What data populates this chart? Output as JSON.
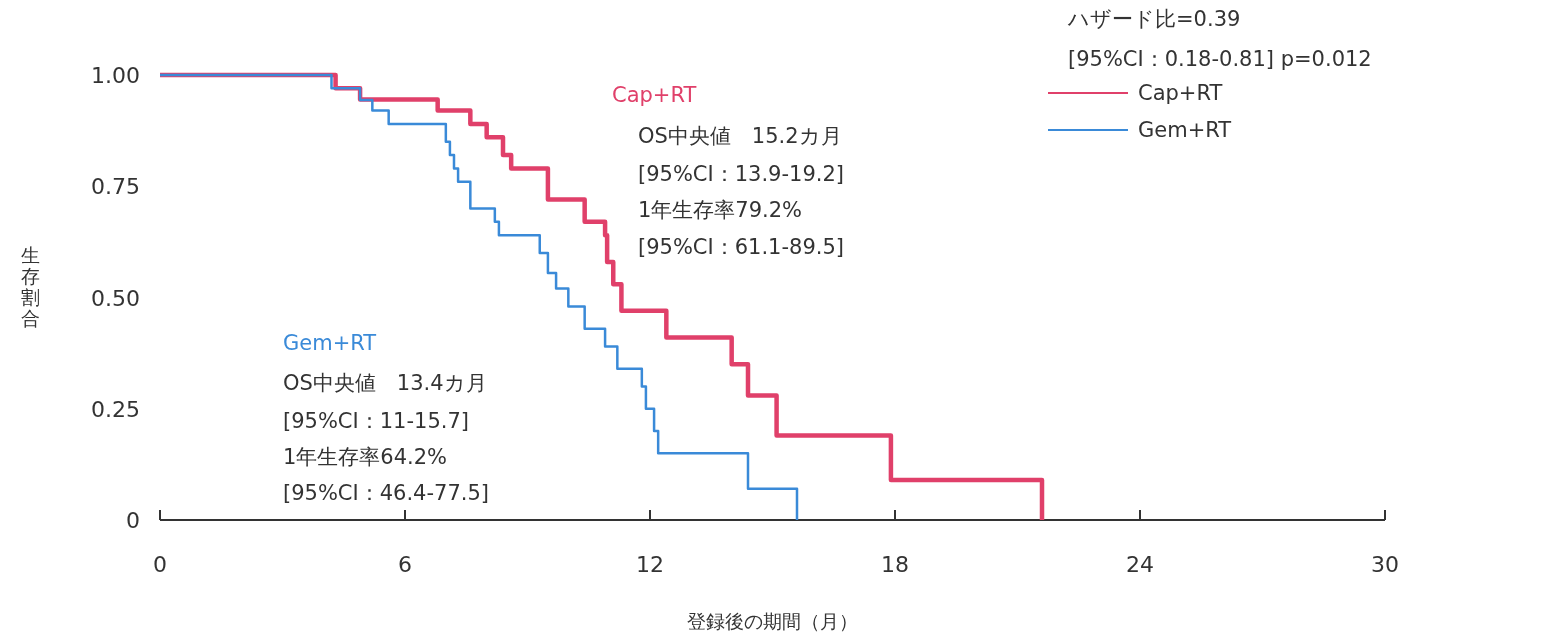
{
  "chart_data": {
    "type": "step",
    "xlabel": "登録後の期間（月）",
    "ylabel": "生存割合",
    "xlim": [
      0,
      30
    ],
    "xticks": [
      0,
      6,
      12,
      18,
      24,
      30
    ],
    "ylim": [
      0,
      1
    ],
    "yticks": [
      0,
      {
        "value": 0.25,
        "label": "0.25"
      },
      {
        "value": 0.5,
        "label": "0.50"
      },
      {
        "value": 0.75,
        "label": "0.75"
      },
      {
        "value": 1,
        "label": "1.00"
      }
    ],
    "legend": "top right",
    "grid": false,
    "marker": "none",
    "line_style": "solid",
    "series": [
      {
        "name": "Cap+RT",
        "color": "#e0406a",
        "x": [
          0,
          4.3,
          4.9,
          6.8,
          7.6,
          8.0,
          8.4,
          8.6,
          9.5,
          10.4,
          10.9,
          10.95,
          11.1,
          11.3,
          12.4,
          14.0,
          14.4,
          15.1,
          17.9,
          21.6
        ],
        "values": [
          1,
          0.97,
          0.945,
          0.92,
          0.89,
          0.86,
          0.82,
          0.79,
          0.72,
          0.67,
          0.64,
          0.58,
          0.53,
          0.47,
          0.41,
          0.35,
          0.28,
          0.19,
          0.09,
          0
        ]
      },
      {
        "name": "Gem+RT",
        "color": "#3a8ad8",
        "x": [
          0,
          4.2,
          4.9,
          5.2,
          5.6,
          7.0,
          7.1,
          7.2,
          7.3,
          7.6,
          8.2,
          8.3,
          9.3,
          9.5,
          9.7,
          10.0,
          10.4,
          10.9,
          11.2,
          11.8,
          11.9,
          12.1,
          12.2,
          14.4,
          15.6
        ],
        "values": [
          1,
          0.97,
          0.944,
          0.92,
          0.89,
          0.85,
          0.82,
          0.79,
          0.76,
          0.7,
          0.67,
          0.64,
          0.6,
          0.555,
          0.52,
          0.48,
          0.43,
          0.39,
          0.34,
          0.3,
          0.25,
          0.2,
          0.15,
          0.07,
          0
        ]
      }
    ],
    "annotations": [
      "ハザード比=0.39",
      "[95%CI：0.18-0.81]  p=0.012",
      "OS中央値　15.2カ月",
      "[95%CI：13.9-19.2]",
      "1年生存率79.2%",
      "[95%CI：61.1-89.5]",
      "OS中央値　13.4カ月",
      "[95%CI：11-15.7]",
      "1年生存率64.2%",
      "[95%CI：46.4-77.5]"
    ]
  }
}
